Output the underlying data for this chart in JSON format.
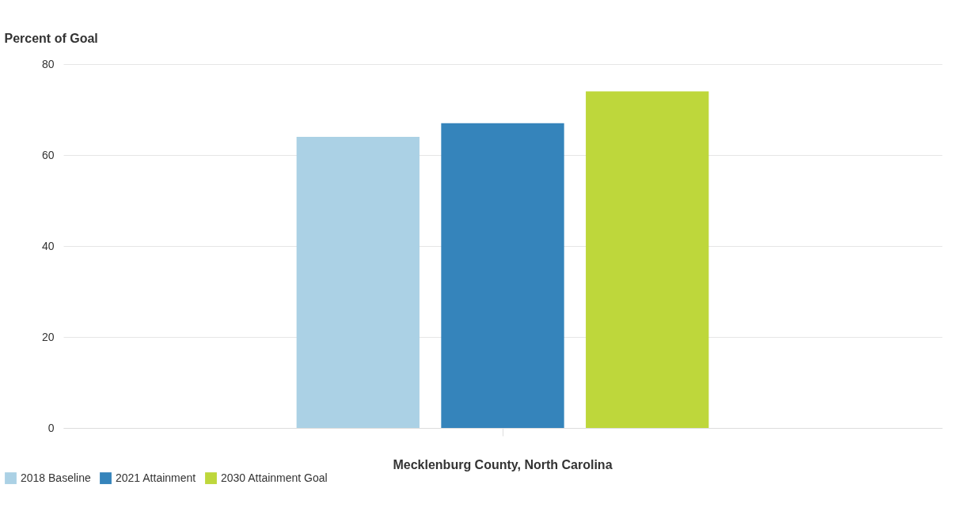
{
  "chart_data": {
    "type": "bar",
    "ylabel": "Percent of Goal",
    "categories": [
      "Mecklenburg County, North Carolina"
    ],
    "series": [
      {
        "name": "2018 Baseline",
        "color": "#abd1e5",
        "values": [
          64
        ]
      },
      {
        "name": "2021 Attainment",
        "color": "#3584bb",
        "values": [
          67
        ]
      },
      {
        "name": "2030 Attainment Goal",
        "color": "#bed73b",
        "values": [
          74
        ]
      }
    ],
    "ylim": [
      0,
      80
    ],
    "yticks": [
      0,
      20,
      40,
      60,
      80
    ],
    "grid": "y",
    "legend": "bottom left"
  }
}
